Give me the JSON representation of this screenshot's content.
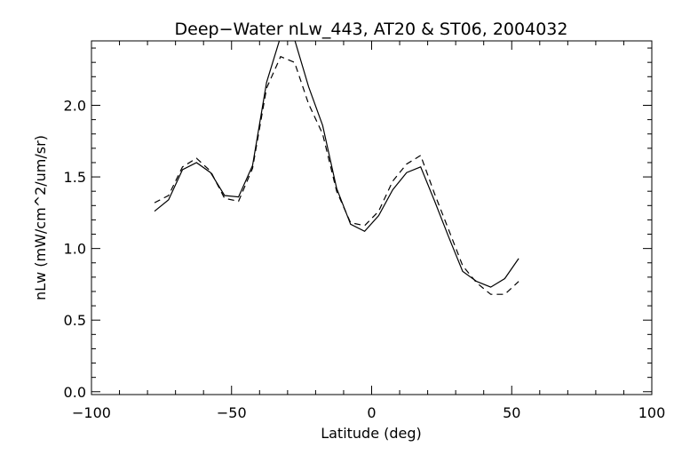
{
  "chart_data": {
    "type": "line",
    "title": "Deep−Water nLw_443, AT20 & ST06, 2004032",
    "xlabel": "Latitude (deg)",
    "ylabel": "nLw (mW/cm^2/um/sr)",
    "xlim": [
      -100,
      100
    ],
    "ylim": [
      -0.02,
      2.45
    ],
    "xticks": [
      -100,
      -50,
      0,
      50,
      100
    ],
    "xtick_labels": [
      "−100",
      "−50",
      "0",
      "50",
      "100"
    ],
    "yticks": [
      0.0,
      0.5,
      1.0,
      1.5,
      2.0
    ],
    "ytick_labels": [
      "0.0",
      "0.5",
      "1.0",
      "1.5",
      "2.0"
    ],
    "grid": false,
    "series": [
      {
        "style": "solid",
        "x": [
          -77.5,
          -72.5,
          -67.5,
          -62.5,
          -57.5,
          -52.5,
          -47.5,
          -42.5,
          -37.5,
          -32.5,
          -27.5,
          -22.5,
          -17.5,
          -12.5,
          -7.5,
          -2.5,
          2.5,
          7.5,
          12.5,
          17.5,
          22.5,
          27.5,
          32.5,
          37.5,
          42.5,
          47.5,
          52.5
        ],
        "y": [
          1.26,
          1.34,
          1.55,
          1.6,
          1.53,
          1.37,
          1.36,
          1.58,
          2.16,
          2.48,
          2.46,
          2.13,
          1.86,
          1.42,
          1.17,
          1.12,
          1.23,
          1.41,
          1.53,
          1.57,
          1.33,
          1.08,
          0.84,
          0.77,
          0.73,
          0.79,
          0.93
        ]
      },
      {
        "style": "dashed",
        "x": [
          -77.5,
          -72.5,
          -67.5,
          -62.5,
          -57.5,
          -52.5,
          -47.5,
          -42.5,
          -37.5,
          -32.5,
          -27.5,
          -22.5,
          -17.5,
          -12.5,
          -7.5,
          -2.5,
          2.5,
          7.5,
          12.5,
          17.5,
          22.5,
          27.5,
          32.5,
          37.5,
          42.5,
          47.5,
          52.5
        ],
        "y": [
          1.32,
          1.37,
          1.57,
          1.63,
          1.54,
          1.35,
          1.33,
          1.56,
          2.12,
          2.34,
          2.3,
          2.01,
          1.8,
          1.4,
          1.18,
          1.16,
          1.26,
          1.47,
          1.59,
          1.65,
          1.38,
          1.13,
          0.88,
          0.76,
          0.68,
          0.68,
          0.77
        ]
      }
    ]
  }
}
